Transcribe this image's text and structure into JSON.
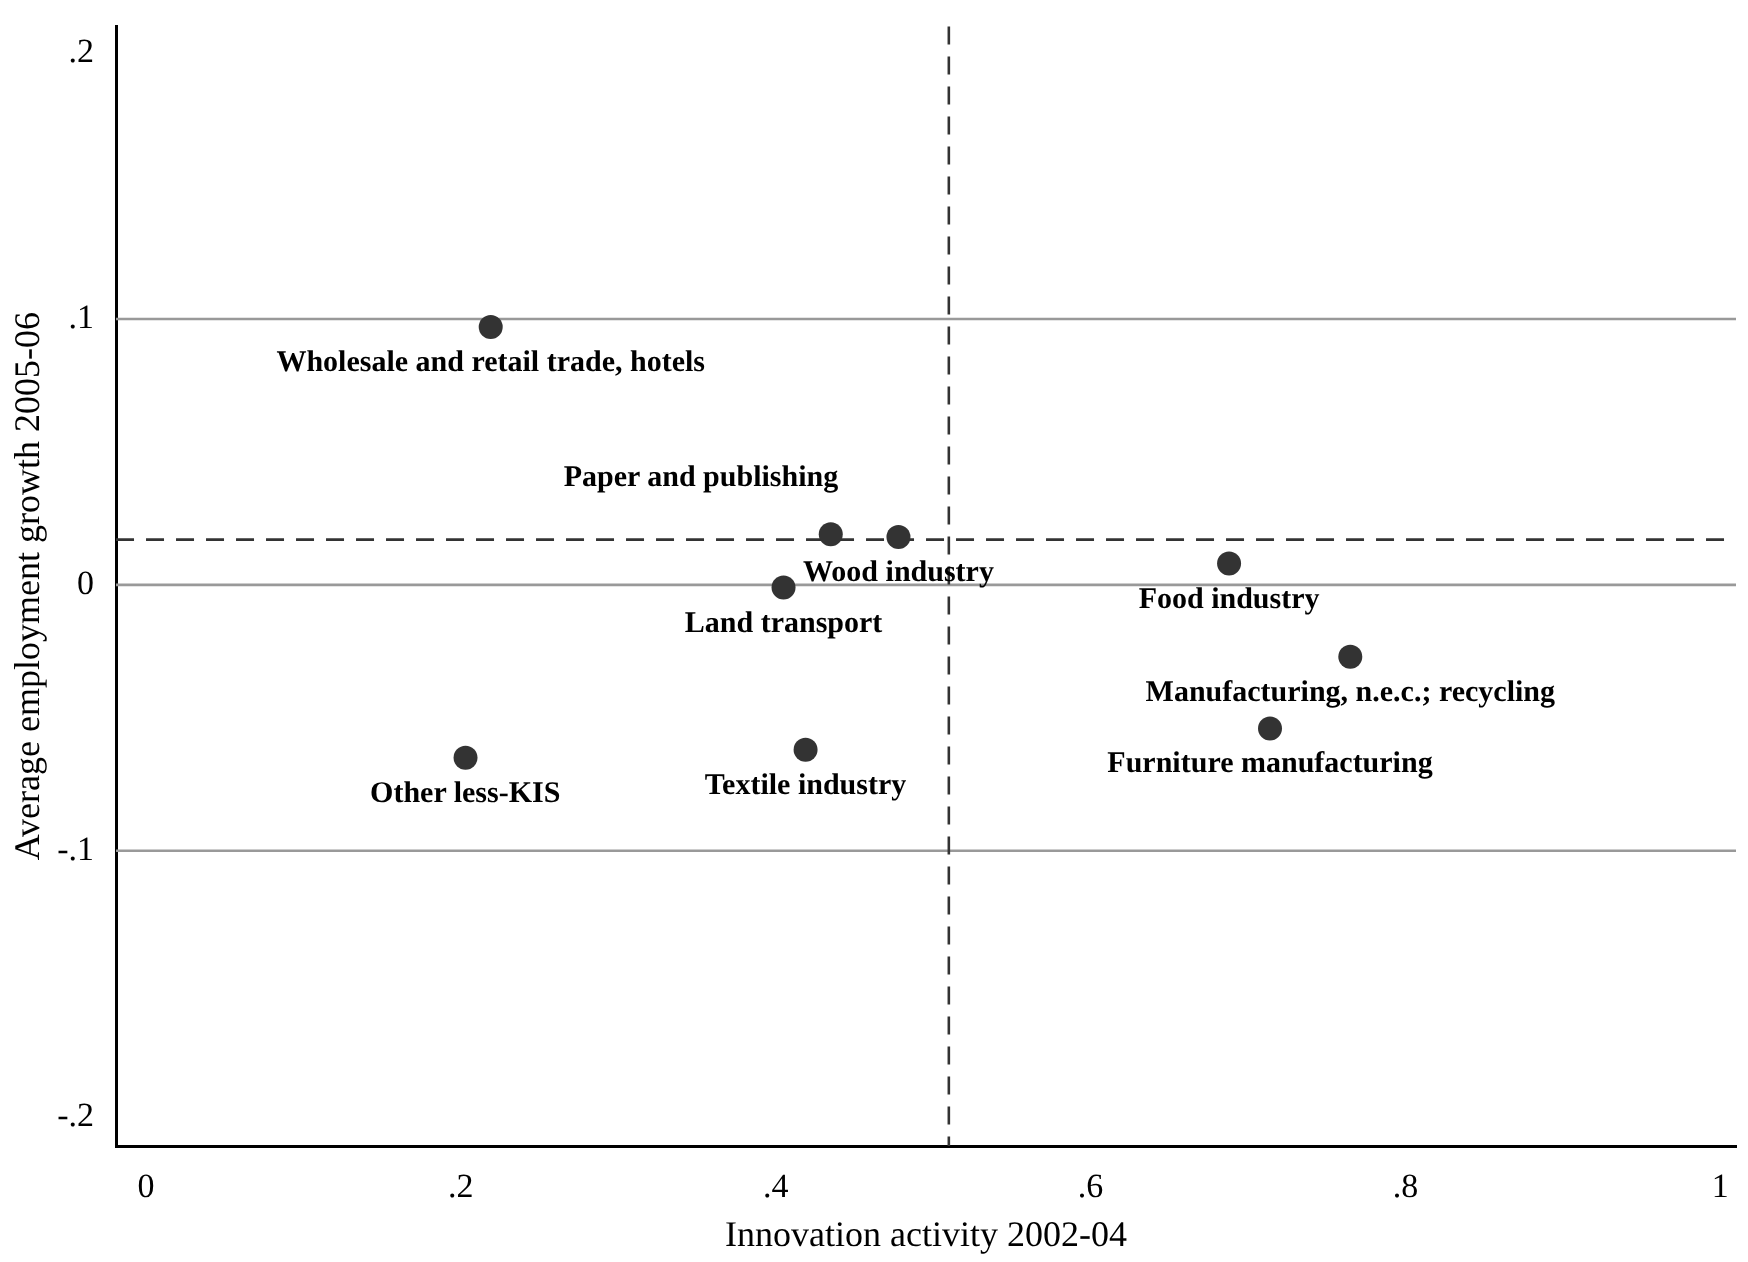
{
  "chart_data": {
    "type": "scatter",
    "xlabel": "Innovation activity 2002-04",
    "ylabel": "Average employment growth 2005-06",
    "series": [
      {
        "color": "#333333",
        "x": [
          0.219,
          0.435,
          0.478,
          0.405,
          0.688,
          0.765,
          0.714,
          0.419,
          0.203
        ],
        "values": [
          0.097,
          0.019,
          0.018,
          -0.001,
          0.008,
          -0.027,
          -0.054,
          -0.062,
          -0.065
        ]
      }
    ],
    "annotations": [
      {
        "text": "Wholesale and retail trade, hotels",
        "x": 0.219,
        "y": 0.097
      },
      {
        "text": "Paper and publishing",
        "x": 0.435,
        "y": 0.019
      },
      {
        "text": "Wood industry",
        "x": 0.478,
        "y": 0.018
      },
      {
        "text": "Land transport",
        "x": 0.405,
        "y": -0.001
      },
      {
        "text": "Food industry",
        "x": 0.688,
        "y": 0.008
      },
      {
        "text": "Manufacturing, n.e.c.; recycling",
        "x": 0.765,
        "y": -0.027
      },
      {
        "text": "Furniture manufacturing",
        "x": 0.714,
        "y": -0.054
      },
      {
        "text": "Textile industry",
        "x": 0.419,
        "y": -0.062
      },
      {
        "text": "Other less-KIS",
        "x": 0.203,
        "y": -0.065
      }
    ],
    "xlim": [
      -0.019,
      1.01
    ],
    "xticks": [
      0,
      {
        "value": 0.2,
        "label": ".2"
      },
      {
        "value": 0.4,
        "label": ".4"
      },
      {
        "value": 0.6,
        "label": ".6"
      },
      {
        "value": 0.8,
        "label": ".8"
      },
      1
    ],
    "ylim": [
      -0.211,
      0.21
    ],
    "yticks": [
      {
        "value": -0.2,
        "label": "-.2"
      },
      {
        "value": -0.1,
        "label": "-.1"
      },
      0,
      {
        "value": 0.1,
        "label": ".1"
      },
      {
        "value": 0.2,
        "label": ".2"
      }
    ],
    "ref_lines": [
      {
        "axis": "x",
        "value": 0.51,
        "line_style": "dashed",
        "color": "#333333"
      },
      {
        "axis": "y",
        "value": 0.017,
        "line_style": "dashed",
        "color": "#333333"
      }
    ],
    "grid": "y",
    "legend": false,
    "marker": "circle"
  }
}
